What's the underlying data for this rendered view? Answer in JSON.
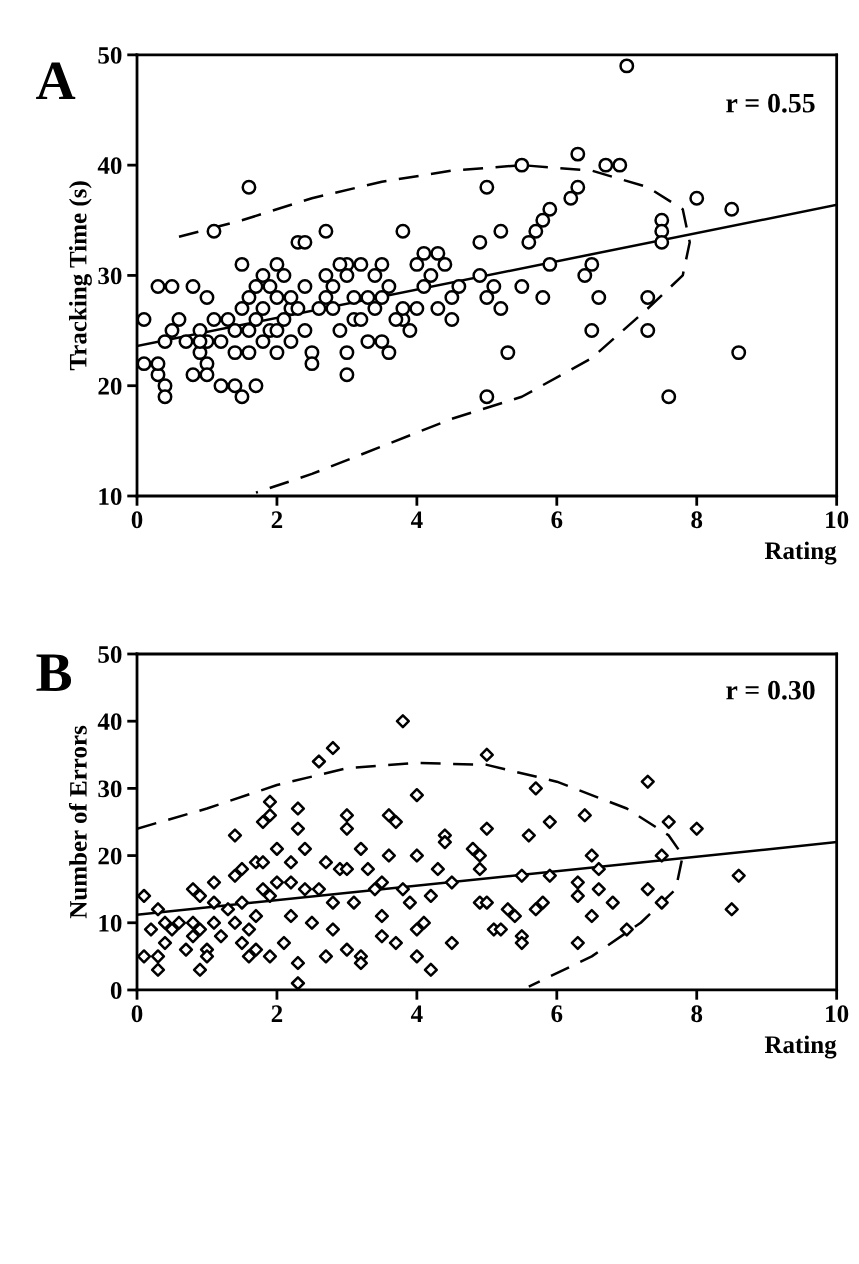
{
  "chart_data": [
    {
      "type": "scatter",
      "title": "A",
      "xlabel": "Rating",
      "ylabel": "Tracking Time (s)",
      "annotations": [
        "r = 0.55"
      ],
      "xlim": [
        0,
        10
      ],
      "ylim": [
        10,
        50
      ],
      "xticks": [
        0,
        2,
        4,
        6,
        8,
        10
      ],
      "yticks": [
        10,
        20,
        30,
        40,
        50
      ],
      "grid": false,
      "legend": false,
      "series": [
        {
          "marker": "circle",
          "color": "#000000",
          "x": [
            0.1,
            0.1,
            0.3,
            0.5,
            0.4,
            0.3,
            0.4,
            0.4,
            0.3,
            0.5,
            0.6,
            0.8,
            0.9,
            0.9,
            0.8,
            1.0,
            1.0,
            1.0,
            1.1,
            1.1,
            1.0,
            1.2,
            1.3,
            1.4,
            1.5,
            1.4,
            1.5,
            1.6,
            1.5,
            1.6,
            1.6,
            1.7,
            1.8,
            1.8,
            1.9,
            1.9,
            2.0,
            2.0,
            2.1,
            2.2,
            2.2,
            2.3,
            2.4,
            2.4,
            2.4,
            2.5,
            2.5,
            2.7,
            2.7,
            2.8,
            2.8,
            2.9,
            3.0,
            3.0,
            3.1,
            3.0,
            3.0,
            3.2,
            3.3,
            3.3,
            3.4,
            3.5,
            3.5,
            3.6,
            3.6,
            3.8,
            3.8,
            3.9,
            4.0,
            4.1,
            4.0,
            4.2,
            4.3,
            4.4,
            4.3,
            4.5,
            4.5,
            4.6,
            4.9,
            5.0,
            4.9,
            5.0,
            5.0,
            5.1,
            5.2,
            5.2,
            5.3,
            5.5,
            5.5,
            5.6,
            5.7,
            5.8,
            5.8,
            5.9,
            5.9,
            6.2,
            6.3,
            6.3,
            6.4,
            6.5,
            6.5,
            6.6,
            6.7,
            6.9,
            7.0,
            7.3,
            7.3,
            7.5,
            7.5,
            7.5,
            7.6,
            8.0,
            8.5,
            8.6,
            1.7,
            1.8,
            2.0,
            2.1,
            2.6,
            2.9,
            3.1,
            3.4,
            3.5,
            2.2,
            1.7,
            3.7,
            1.2,
            0.9,
            0.7,
            2.7,
            3.2,
            3.8,
            4.1,
            1.4,
            2.3,
            2.0,
            1.6
          ],
          "values": [
            26,
            22,
            29,
            29,
            24,
            21,
            20,
            19,
            22,
            25,
            26,
            29,
            25,
            23,
            21,
            28,
            22,
            24,
            26,
            34,
            21,
            20,
            26,
            25,
            27,
            20,
            19,
            38,
            31,
            28,
            23,
            20,
            30,
            27,
            25,
            29,
            31,
            28,
            26,
            27,
            24,
            33,
            33,
            29,
            25,
            23,
            22,
            34,
            30,
            27,
            29,
            25,
            31,
            30,
            28,
            23,
            21,
            31,
            28,
            24,
            27,
            24,
            31,
            29,
            23,
            34,
            26,
            25,
            31,
            32,
            27,
            30,
            32,
            31,
            27,
            28,
            26,
            29,
            33,
            38,
            30,
            28,
            19,
            29,
            34,
            27,
            23,
            40,
            29,
            33,
            34,
            35,
            28,
            36,
            31,
            37,
            38,
            41,
            30,
            31,
            25,
            28,
            40,
            40,
            49,
            28,
            25,
            35,
            34,
            33,
            19,
            37,
            36,
            23,
            26,
            24,
            25,
            30,
            27,
            31,
            26,
            30,
            28,
            28,
            29,
            26,
            24,
            24,
            24,
            28,
            26,
            27,
            29,
            23,
            27,
            23,
            25
          ]
        },
        {
          "type": "line",
          "line_style": "solid",
          "color": "#000000",
          "x": [
            0,
            10
          ],
          "values": [
            23.6,
            36.4
          ]
        },
        {
          "type": "line",
          "line_style": "dashed",
          "color": "#000000",
          "x": [
            0.6,
            1.5,
            2.5,
            3.5,
            4.5,
            5.5,
            6.5,
            7.3,
            7.8,
            7.9,
            7.8,
            7.3,
            6.5,
            5.5,
            4.5,
            3.5,
            2.5,
            1.7
          ],
          "values": [
            33.5,
            35,
            37,
            38.5,
            39.5,
            40,
            39.5,
            38,
            36,
            33,
            30,
            27,
            22.5,
            19,
            17,
            14.5,
            12,
            10.3
          ]
        }
      ]
    },
    {
      "type": "scatter",
      "title": "B",
      "xlabel": "Rating",
      "ylabel": "Number of Errors",
      "annotations": [
        "r = 0.30"
      ],
      "xlim": [
        0,
        10
      ],
      "ylim": [
        0,
        50
      ],
      "xticks": [
        0,
        2,
        4,
        6,
        8,
        10
      ],
      "yticks": [
        0,
        10,
        20,
        30,
        40,
        50
      ],
      "grid": false,
      "legend": false,
      "series": [
        {
          "marker": "diamond",
          "color": "#000000",
          "x": [
            0.1,
            0.1,
            0.2,
            0.3,
            0.3,
            0.4,
            0.4,
            0.3,
            0.5,
            0.6,
            0.7,
            0.8,
            0.8,
            0.8,
            0.9,
            0.9,
            0.9,
            1.0,
            1.0,
            1.1,
            1.1,
            1.1,
            1.2,
            1.3,
            1.4,
            1.4,
            1.4,
            1.5,
            1.5,
            1.5,
            1.6,
            1.6,
            1.7,
            1.7,
            1.7,
            1.8,
            1.8,
            1.8,
            1.9,
            1.9,
            1.9,
            1.9,
            2.0,
            2.0,
            2.1,
            2.2,
            2.2,
            2.2,
            2.3,
            2.3,
            2.3,
            2.3,
            2.4,
            2.4,
            2.5,
            2.6,
            2.6,
            2.7,
            2.7,
            2.8,
            2.8,
            2.8,
            2.9,
            3.0,
            3.0,
            3.0,
            3.0,
            3.1,
            3.2,
            3.2,
            3.2,
            3.3,
            3.4,
            3.5,
            3.5,
            3.5,
            3.6,
            3.6,
            3.7,
            3.7,
            3.8,
            3.8,
            3.9,
            4.0,
            4.0,
            4.0,
            4.0,
            4.1,
            4.2,
            4.2,
            4.3,
            4.4,
            4.4,
            4.5,
            4.5,
            4.8,
            4.9,
            4.9,
            4.9,
            5.0,
            5.0,
            5.0,
            5.1,
            5.2,
            5.3,
            5.4,
            5.5,
            5.5,
            5.5,
            5.6,
            5.7,
            5.7,
            5.8,
            5.9,
            5.9,
            6.3,
            6.3,
            6.3,
            6.4,
            6.5,
            6.5,
            6.6,
            6.6,
            6.8,
            7.0,
            7.3,
            7.3,
            7.5,
            7.5,
            7.6,
            8.0,
            8.5,
            8.6
          ],
          "values": [
            14,
            5,
            9,
            12,
            3,
            10,
            7,
            5,
            9,
            10,
            6,
            15,
            10,
            8,
            14,
            9,
            3,
            6,
            5,
            13,
            10,
            16,
            8,
            12,
            17,
            23,
            10,
            13,
            18,
            7,
            9,
            5,
            19,
            11,
            6,
            25,
            19,
            15,
            26,
            28,
            14,
            5,
            21,
            16,
            7,
            19,
            16,
            11,
            27,
            24,
            4,
            1,
            21,
            15,
            10,
            34,
            15,
            19,
            5,
            36,
            13,
            9,
            18,
            26,
            24,
            18,
            6,
            13,
            21,
            5,
            4,
            18,
            15,
            16,
            11,
            8,
            26,
            20,
            25,
            7,
            40,
            15,
            13,
            29,
            20,
            9,
            5,
            10,
            14,
            3,
            18,
            23,
            22,
            16,
            7,
            21,
            20,
            18,
            13,
            35,
            24,
            13,
            9,
            9,
            12,
            11,
            17,
            8,
            7,
            23,
            30,
            12,
            13,
            25,
            17,
            7,
            16,
            14,
            26,
            20,
            11,
            18,
            15,
            13,
            9,
            31,
            15,
            20,
            13,
            25,
            24,
            12,
            17
          ]
        },
        {
          "type": "line",
          "line_style": "solid",
          "color": "#000000",
          "x": [
            0,
            10
          ],
          "values": [
            11.2,
            22
          ]
        },
        {
          "type": "line",
          "line_style": "dashed",
          "color": "#000000",
          "x": [
            0,
            1,
            2,
            3,
            4,
            5,
            6,
            7,
            7.6,
            7.8,
            7.7,
            7.2,
            6.5,
            5.6
          ],
          "values": [
            24,
            27,
            30.5,
            33,
            33.8,
            33.5,
            31,
            27,
            23,
            20,
            15,
            10,
            5,
            0.5
          ]
        }
      ]
    }
  ]
}
